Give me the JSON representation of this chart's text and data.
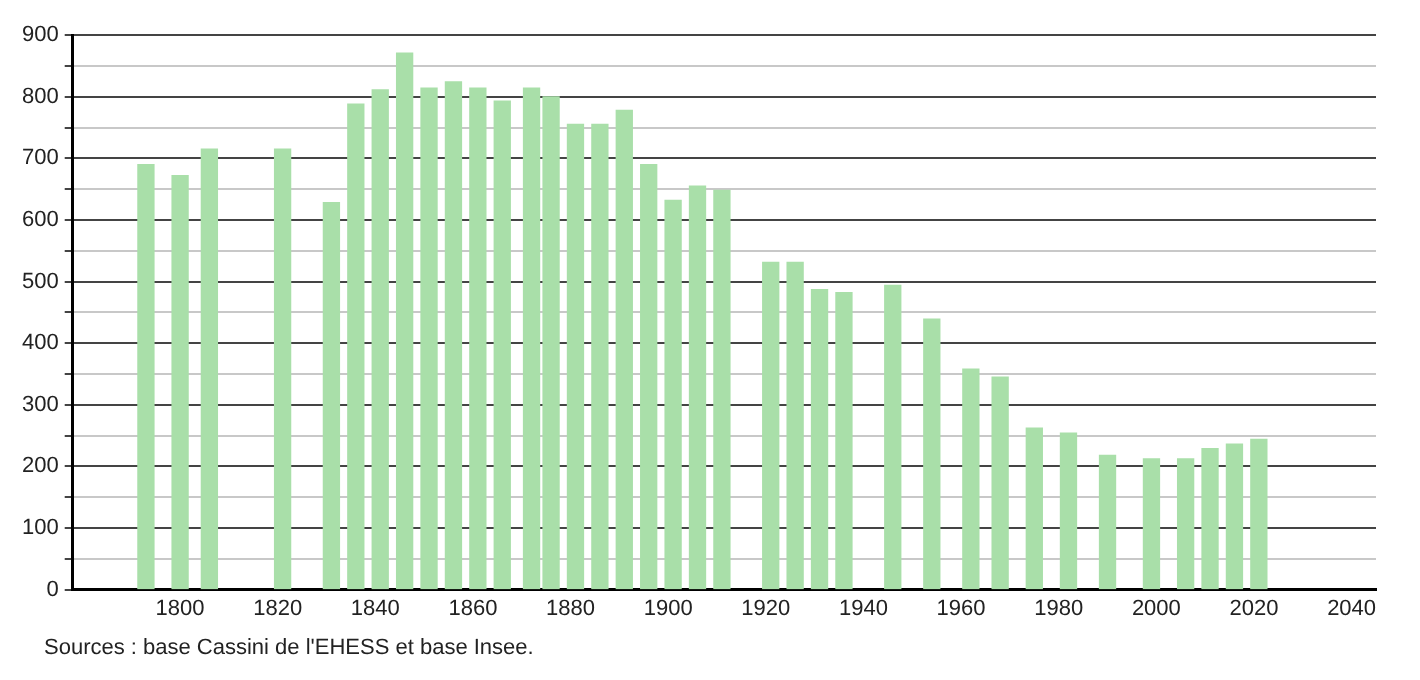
{
  "chart_data": {
    "type": "bar",
    "x": [
      1793,
      1800,
      1806,
      1821,
      1831,
      1836,
      1841,
      1846,
      1851,
      1856,
      1861,
      1866,
      1872,
      1876,
      1881,
      1886,
      1891,
      1896,
      1901,
      1906,
      1911,
      1921,
      1926,
      1931,
      1936,
      1946,
      1954,
      1962,
      1968,
      1975,
      1982,
      1990,
      1999,
      2006,
      2011,
      2016,
      2021
    ],
    "values": [
      690,
      672,
      715,
      715,
      628,
      788,
      811,
      871,
      814,
      824,
      814,
      793,
      814,
      800,
      755,
      755,
      778,
      690,
      632,
      655,
      648,
      531,
      531,
      487,
      482,
      494,
      439,
      358,
      345,
      262,
      254,
      218,
      212,
      212,
      229,
      236,
      244
    ],
    "color": "#a9dfa9",
    "xlim": [
      1778,
      2045
    ],
    "xticks": [
      1800,
      1820,
      1840,
      1860,
      1880,
      1900,
      1920,
      1940,
      1960,
      1980,
      2000,
      2020,
      2040
    ],
    "ylim": [
      0,
      900
    ],
    "yticks": [
      0,
      {
        "value": 50,
        "label": null
      },
      100,
      {
        "value": 150,
        "label": null
      },
      200,
      {
        "value": 250,
        "label": null
      },
      300,
      {
        "value": 350,
        "label": null
      },
      400,
      {
        "value": 450,
        "label": null
      },
      500,
      {
        "value": 550,
        "label": null
      },
      600,
      {
        "value": 650,
        "label": null
      },
      700,
      {
        "value": 750,
        "label": null
      },
      800,
      {
        "value": 850,
        "label": null
      },
      900
    ],
    "grid": "y",
    "annotations": [
      "Sources : base Cassini de l'EHESS et base Insee."
    ]
  }
}
